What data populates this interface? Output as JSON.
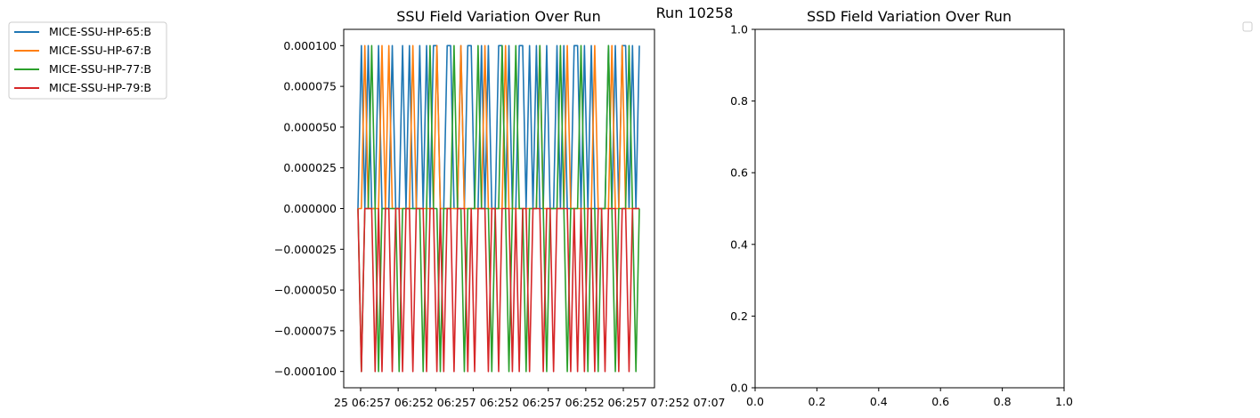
{
  "figure": {
    "suptitle": "Run 10258"
  },
  "colors": {
    "series": [
      "#1f77b4",
      "#ff7f0e",
      "#2ca02c",
      "#d62728"
    ],
    "legend_border": "#cccccc",
    "axis": "#000000"
  },
  "chart_data": [
    {
      "type": "line",
      "title": "SSU Field Variation Over Run",
      "xlabel": "",
      "ylabel": "",
      "ylim": [
        -0.00011,
        0.00011
      ],
      "yticks": [
        "0.000100",
        "0.000075",
        "0.000050",
        "0.000025",
        "0.000000",
        "−0.000025",
        "−0.000050",
        "−0.000075",
        "−0.000100"
      ],
      "ytick_values": [
        0.0001,
        7.5e-05,
        5e-05,
        2.5e-05,
        0,
        -2.5e-05,
        -5e-05,
        -7.5e-05,
        -0.0001
      ],
      "xtick_labels": [
        "25 06:57",
        "25 06:57",
        "25 06:57",
        "25 06:57",
        "25 06:57",
        "25 06:57",
        "25 07:02",
        "25 07:07"
      ],
      "xtick_display": "25 06:257 06:252 06:257 06:252 06:257 06:252 06:257 07:252 07:07",
      "legend": {
        "placement": "outside-upper-left"
      },
      "series": [
        {
          "name": "MICE-SSU-HP-65:B",
          "values": [
            0,
            0.0001,
            0,
            0.0001,
            0,
            0,
            0.0001,
            0,
            0,
            0,
            0.0001,
            0,
            0,
            0.0001,
            0,
            0.0001,
            0,
            0,
            0.0001,
            0,
            0.0001,
            0,
            0.0001,
            0.0001,
            0,
            0,
            0.0001,
            0.0001,
            0,
            0,
            0.0001,
            0,
            0.0001,
            0.0001,
            0,
            0,
            0.0001,
            0,
            0.0001,
            0,
            0,
            0.0001,
            0.0001,
            0,
            0.0001,
            0,
            0,
            0.0001,
            0.0001,
            0,
            0.0001,
            0,
            0.0001,
            0,
            0,
            0.0001,
            0,
            0,
            0.0001,
            0,
            0.0001,
            0,
            0,
            0.0001,
            0.0001,
            0,
            0.0001,
            0,
            0.0001,
            0,
            0,
            0,
            0,
            0.0001,
            0,
            0.0001,
            0,
            0.0001,
            0.0001,
            0,
            0.0001,
            0,
            0.0001
          ]
        },
        {
          "name": "MICE-SSU-HP-67:B",
          "values": [
            0,
            0,
            0.0001,
            0,
            0,
            0,
            0,
            0.0001,
            0,
            0.0001,
            0,
            0,
            0,
            0,
            0,
            0,
            0.0001,
            0,
            0,
            0,
            0,
            0,
            0,
            0.0001,
            0,
            0,
            0,
            0,
            0,
            0,
            0.0001,
            0,
            0,
            0,
            0,
            0,
            0,
            0.0001,
            0,
            0,
            0,
            0,
            0,
            0.0001,
            0,
            0,
            0,
            0,
            0,
            0,
            0,
            0,
            0,
            0.0001,
            0,
            0,
            0,
            0,
            0,
            0,
            0,
            0.0001,
            0,
            0,
            0,
            0,
            0,
            0,
            0,
            0.0001,
            0,
            0,
            0,
            0,
            0.0001,
            0,
            0,
            0.0001,
            0,
            0,
            0,
            0,
            0
          ]
        },
        {
          "name": "MICE-SSU-HP-77:B",
          "values": [
            0,
            -0.0001,
            0,
            0,
            0.0001,
            0,
            -0.0001,
            0,
            0,
            0,
            0,
            0,
            -0.0001,
            0,
            0,
            0,
            0,
            0,
            0,
            -0.0001,
            0,
            0.0001,
            0,
            0,
            -0.0001,
            0,
            0,
            0,
            0.0001,
            0,
            0,
            -0.0001,
            0,
            0,
            0,
            0.0001,
            0,
            0,
            0,
            -0.0001,
            0,
            0,
            0.0001,
            0,
            -0.0001,
            0,
            0.0001,
            0,
            0,
            -0.0001,
            0,
            0,
            0,
            0.0001,
            0,
            -0.0001,
            0,
            0,
            0,
            0.0001,
            0,
            -0.0001,
            0,
            0,
            0,
            0.0001,
            0,
            -0.0001,
            0,
            0,
            -0.0001,
            0,
            0,
            0.0001,
            0,
            -0.0001,
            0,
            0,
            0,
            0.0001,
            0,
            -0.0001,
            0
          ]
        },
        {
          "name": "MICE-SSU-HP-79:B",
          "values": [
            0,
            -0.0001,
            0,
            0,
            0,
            -0.0001,
            0,
            -0.0001,
            0,
            0,
            -0.0001,
            0,
            0,
            -0.0001,
            0,
            0,
            -0.0001,
            0,
            0,
            0,
            -0.0001,
            0,
            0,
            -0.0001,
            0,
            -0.0001,
            0,
            0,
            -0.0001,
            0,
            0,
            0,
            -0.0001,
            0,
            -0.0001,
            0,
            0,
            0,
            -0.0001,
            0,
            0,
            -0.0001,
            0,
            0,
            0,
            -0.0001,
            0,
            -0.0001,
            0,
            0,
            -0.0001,
            0,
            0,
            0,
            -0.0001,
            0,
            0,
            -0.0001,
            0,
            0,
            0,
            0,
            -0.0001,
            0,
            -0.0001,
            0,
            -0.0001,
            0,
            0,
            -0.0001,
            0,
            0,
            -0.0001,
            0,
            0,
            0,
            -0.0001,
            0,
            0,
            -0.0001,
            0,
            0,
            0
          ]
        }
      ]
    },
    {
      "type": "line",
      "title": "SSD Field Variation Over Run",
      "xlabel": "",
      "ylabel": "",
      "xlim": [
        0,
        1
      ],
      "ylim": [
        0,
        1
      ],
      "xticks": [
        "0.0",
        "0.2",
        "0.4",
        "0.6",
        "0.8",
        "1.0"
      ],
      "yticks": [
        "0.0",
        "0.2",
        "0.4",
        "0.6",
        "0.8",
        "1.0"
      ],
      "tick_values": [
        0,
        0.2,
        0.4,
        0.6,
        0.8,
        1.0
      ],
      "series": [],
      "legend": {
        "placement": "upper-right",
        "entries": []
      }
    }
  ]
}
